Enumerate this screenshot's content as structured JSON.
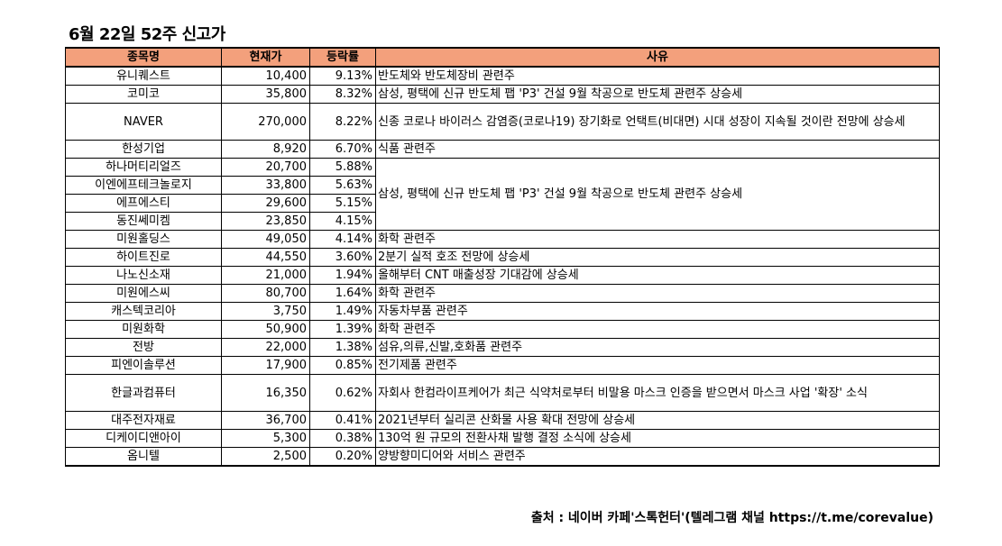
{
  "title": "6월 22일 52주 신고가",
  "headers": [
    "종목명",
    "현재가",
    "등락률",
    "사유"
  ],
  "rows": [
    {
      "name": "유니퀘스트",
      "price": "10,400",
      "rate": "9.13%",
      "reason": "반도체와 반도체장비 관련주"
    },
    {
      "name": "코미코",
      "price": "35,800",
      "rate": "8.32%",
      "reason": "삼성, 평택에 신규 반도체 팹 'P3' 건설 9월 착공으로 반도체 관련주 상승세"
    },
    {
      "name": "NAVER",
      "price": "270,000",
      "rate": "8.22%",
      "reason": "신종 코로나 바이러스 감염증(코로나19) 장기화로 언택트(비대면) 시대 성장이 지속될 것이란 전망에 상승세"
    },
    {
      "name": "한성기업",
      "price": "8,920",
      "rate": "6.70%",
      "reason": "식품 관련주"
    },
    {
      "name": "하나머티리얼즈",
      "price": "20,700",
      "rate": "5.88%",
      "reason": "삼성, 평택에 신규 반도체 팹 'P3' 건설 9월 착공으로 반도체 관련주 상승세"
    },
    {
      "name": "이엔에프테크놀로지",
      "price": "33,800",
      "rate": "5.63%"
    },
    {
      "name": "에프에스티",
      "price": "29,600",
      "rate": "5.15%"
    },
    {
      "name": "동진쎄미켐",
      "price": "23,850",
      "rate": "4.15%"
    },
    {
      "name": "미원홀딩스",
      "price": "49,050",
      "rate": "4.14%",
      "reason": "화학 관련주"
    },
    {
      "name": "하이트진로",
      "price": "44,550",
      "rate": "3.60%",
      "reason": "2분기 실적 호조 전망에 상승세"
    },
    {
      "name": "나노신소재",
      "price": "21,000",
      "rate": "1.94%",
      "reason": "올해부터 CNT 매출성장 기대감에 상승세"
    },
    {
      "name": "미원에스씨",
      "price": "80,700",
      "rate": "1.64%",
      "reason": "화학 관련주"
    },
    {
      "name": "캐스텍코리아",
      "price": "3,750",
      "rate": "1.49%",
      "reason": "자동차부품 관련주"
    },
    {
      "name": "미원화학",
      "price": "50,900",
      "rate": "1.39%",
      "reason": "화학 관련주"
    },
    {
      "name": "전방",
      "price": "22,000",
      "rate": "1.38%",
      "reason": "섬유,의류,신발,호화품 관련주"
    },
    {
      "name": "피엔이솔루션",
      "price": "17,900",
      "rate": "0.85%",
      "reason": "전기제품 관련주"
    },
    {
      "name": "한글과컴퓨터",
      "price": "16,350",
      "rate": "0.62%",
      "reason": "자회사 한컴라이프케어가 최근 식약처로부터 비말용 마스크 인증을 받으면서 마스크 사업 '확장' 소식"
    },
    {
      "name": "대주전자재료",
      "price": "36,700",
      "rate": "0.41%",
      "reason": "2021년부터 실리콘 산화물 사용 확대 전망에 상승세"
    },
    {
      "name": "디케이디앤아이",
      "price": "5,300",
      "rate": "0.38%",
      "reason": "130억 원 규모의 전환사채 발행 결정 소식에 상승세"
    },
    {
      "name": "옴니텔",
      "price": "2,500",
      "rate": "0.20%",
      "reason": "양방향미디어와 서비스 관련주"
    }
  ],
  "source": "출처 : 네이버 카페'스톡헌터'(텔레그램 채널 https://t.me/corevalue)"
}
